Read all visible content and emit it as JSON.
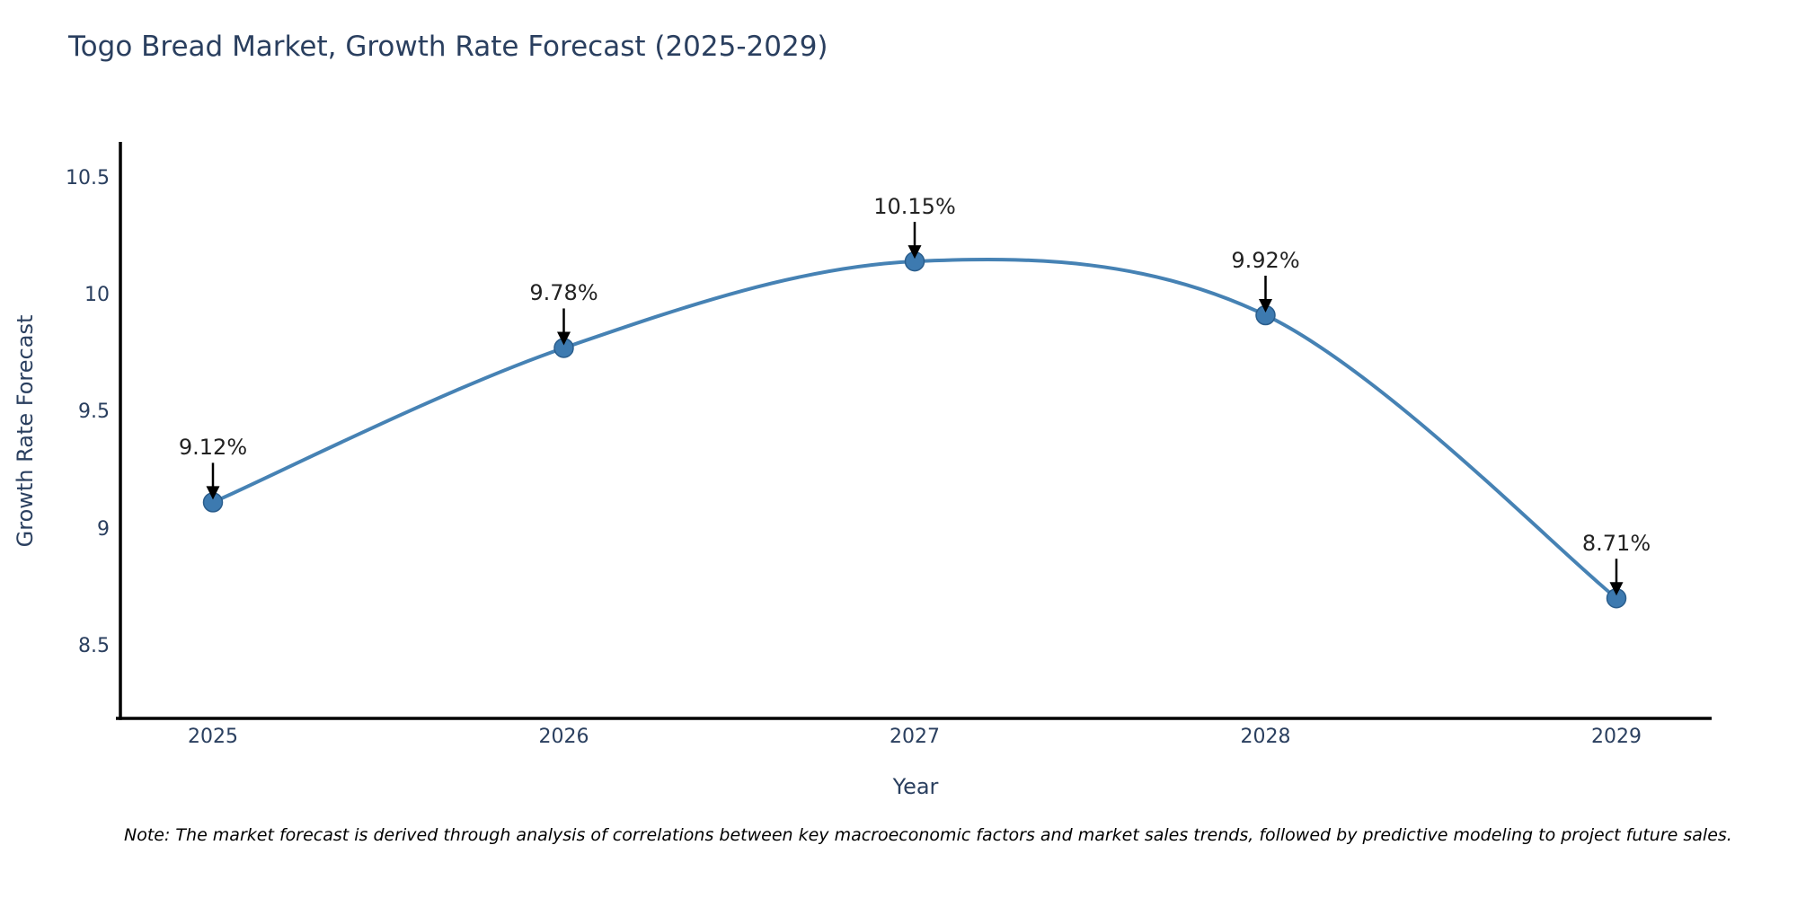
{
  "title": "Togo Bread Market, Growth Rate Forecast (2025-2029)",
  "note": "Note: The market forecast is derived through analysis of correlations between key macroeconomic factors and market sales trends, followed by predictive modeling to project future sales.",
  "chart_data": {
    "type": "line",
    "title": "Togo Bread Market, Growth Rate Forecast (2025-2029)",
    "xlabel": "Year",
    "ylabel": "Growth Rate Forecast",
    "x": [
      2025,
      2026,
      2027,
      2028,
      2029
    ],
    "y": [
      9.12,
      9.78,
      10.15,
      9.92,
      8.71
    ],
    "point_labels": [
      "9.12%",
      "9.78%",
      "10.15%",
      "9.92%",
      "8.71%"
    ],
    "xtick_labels": [
      "2025",
      "2026",
      "2027",
      "2028",
      "2029"
    ],
    "ytick_values": [
      10.5,
      10,
      9.5,
      9,
      8.5
    ],
    "ytick_labels": [
      "10.5",
      "10",
      "9.5",
      "9",
      "8.5"
    ],
    "ylim": [
      8.2,
      10.66
    ],
    "grid": false,
    "legend_position": "none",
    "line_shape": "spline",
    "annotations_have_arrows": true,
    "colors": {
      "line": "#4682b4",
      "marker_fill": "#3d7ab0",
      "marker_edge": "#2a5d8c",
      "arrow": "#000000",
      "axis_line": "#000000",
      "axis_text": "#2a3f5f",
      "data_label_text": "#222222",
      "note_text": "#000000",
      "background": "#ffffff"
    }
  }
}
